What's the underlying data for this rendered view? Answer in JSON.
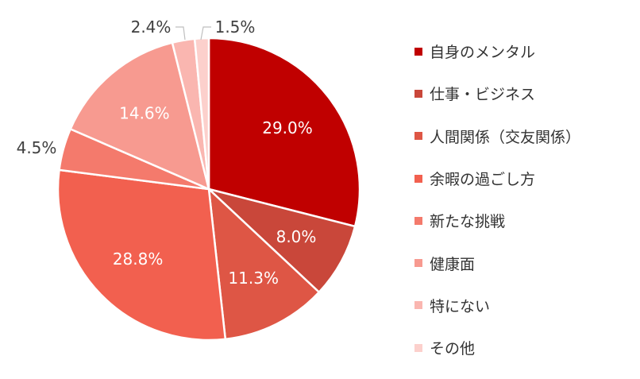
{
  "chart_data": {
    "type": "pie",
    "title": "",
    "categories": [
      "自身のメンタル",
      "仕事・ビジネス",
      "人間関係（交友関係）",
      "余暇の過ごし方",
      "新たな挑戦",
      "健康面",
      "特にない",
      "その他"
    ],
    "values": [
      29.0,
      8.0,
      11.3,
      28.8,
      4.5,
      14.6,
      2.4,
      1.5
    ],
    "labels": [
      "29.0%",
      "8.0%",
      "11.3%",
      "28.8%",
      "4.5%",
      "14.6%",
      "2.4%",
      "1.5%"
    ],
    "colors": [
      "#c00000",
      "#c9473a",
      "#de5645",
      "#f2604f",
      "#f47a6c",
      "#f79a90",
      "#fab6b0",
      "#fcd0cc"
    ],
    "label_positions": [
      "inside",
      "inside",
      "inside",
      "inside",
      "outside",
      "inside",
      "outside",
      "outside"
    ],
    "start_angle": "12 o'clock",
    "direction": "clockwise",
    "legend_position": "right"
  }
}
